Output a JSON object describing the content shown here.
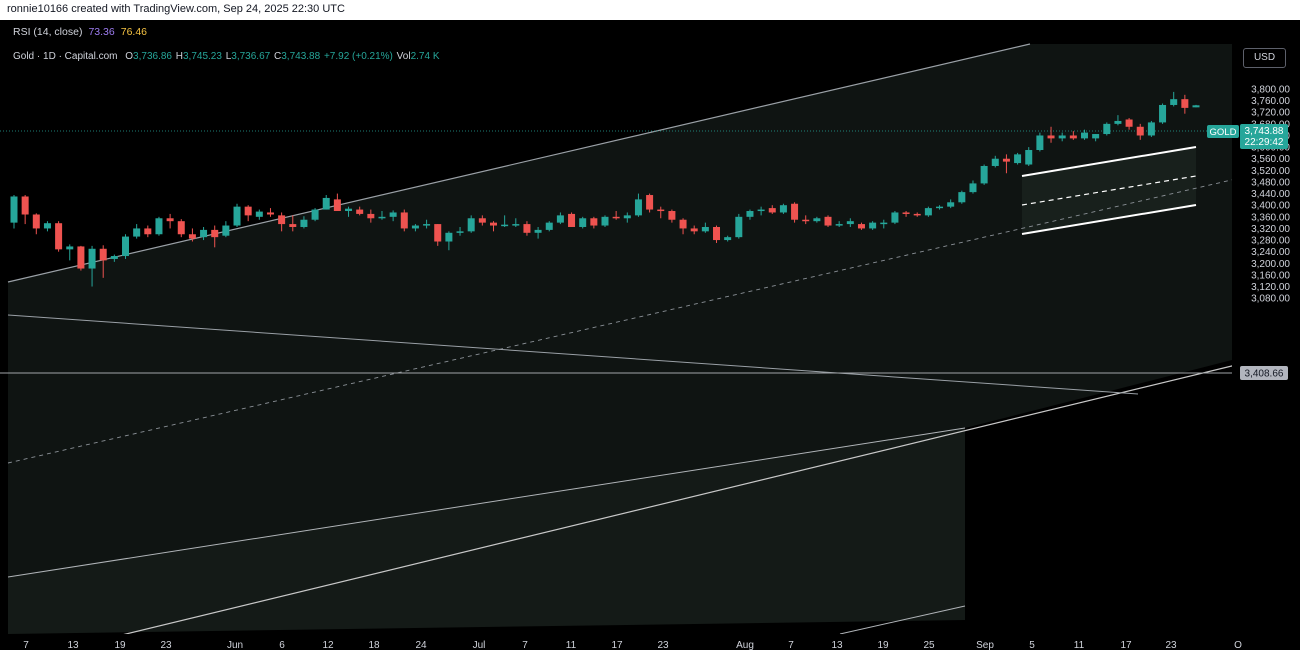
{
  "header": {
    "credit": "ronnie10166 created with TradingView.com, Sep 24, 2025 22:30 UTC"
  },
  "indicator": {
    "label": "RSI (14, close)",
    "value1": "73.36",
    "value2": "76.46"
  },
  "legend": {
    "symbol": "Gold · 1D · Capital.com",
    "o_key": "O",
    "o_val": "3,736.86",
    "h_key": "H",
    "h_val": "3,745.23",
    "l_key": "L",
    "l_val": "3,736.67",
    "c_key": "C",
    "c_val": "3,743.88",
    "change": "+7.92 (+0.21%)",
    "vol_key": "Vol",
    "vol_val": "2.74 K"
  },
  "currency_button": "USD",
  "price_tag": {
    "symbol": "GOLD",
    "price": "3,743.88",
    "countdown": "22:29:42"
  },
  "level_tag": "3,408.66",
  "colors": {
    "up": "#26a69a",
    "down": "#ef5350",
    "background": "#000000",
    "line": "#c8c8c8"
  },
  "chart_data": {
    "type": "candlestick",
    "symbol": "GOLD",
    "interval": "1D",
    "ylim": [
      3045,
      3880
    ],
    "y_ticks": [
      "3,800.00",
      "3,760.00",
      "3,720.00",
      "3,680.00",
      "3,640.00",
      "3,600.00",
      "3,560.00",
      "3,520.00",
      "3,480.00",
      "3,440.00",
      "3,400.00",
      "3,360.00",
      "3,320.00",
      "3,280.00",
      "3,240.00",
      "3,200.00",
      "3,160.00",
      "3,120.00",
      "3,080.00"
    ],
    "y_tick_values": [
      3800,
      3760,
      3720,
      3680,
      3640,
      3600,
      3560,
      3520,
      3480,
      3440,
      3400,
      3360,
      3320,
      3280,
      3240,
      3200,
      3160,
      3120,
      3080
    ],
    "x_ticks": [
      "7",
      "13",
      "19",
      "23",
      "Jun",
      "6",
      "12",
      "18",
      "24",
      "Jul",
      "7",
      "11",
      "17",
      "23",
      "Aug",
      "7",
      "13",
      "19",
      "25",
      "Sep",
      "5",
      "11",
      "17",
      "23",
      "O"
    ],
    "candles": [
      {
        "o": 3340,
        "h": 3435,
        "l": 3320,
        "c": 3430
      },
      {
        "o": 3430,
        "h": 3435,
        "l": 3335,
        "c": 3368
      },
      {
        "o": 3368,
        "h": 3372,
        "l": 3300,
        "c": 3320
      },
      {
        "o": 3320,
        "h": 3345,
        "l": 3310,
        "c": 3338
      },
      {
        "o": 3338,
        "h": 3345,
        "l": 3240,
        "c": 3248
      },
      {
        "o": 3248,
        "h": 3265,
        "l": 3210,
        "c": 3258
      },
      {
        "o": 3258,
        "h": 3260,
        "l": 3175,
        "c": 3182
      },
      {
        "o": 3182,
        "h": 3260,
        "l": 3120,
        "c": 3250
      },
      {
        "o": 3250,
        "h": 3262,
        "l": 3150,
        "c": 3210
      },
      {
        "o": 3215,
        "h": 3230,
        "l": 3205,
        "c": 3225
      },
      {
        "o": 3225,
        "h": 3300,
        "l": 3215,
        "c": 3292
      },
      {
        "o": 3292,
        "h": 3335,
        "l": 3285,
        "c": 3320
      },
      {
        "o": 3320,
        "h": 3330,
        "l": 3290,
        "c": 3300
      },
      {
        "o": 3300,
        "h": 3360,
        "l": 3295,
        "c": 3355
      },
      {
        "o": 3355,
        "h": 3370,
        "l": 3320,
        "c": 3345
      },
      {
        "o": 3345,
        "h": 3352,
        "l": 3290,
        "c": 3300
      },
      {
        "o": 3300,
        "h": 3320,
        "l": 3275,
        "c": 3285
      },
      {
        "o": 3290,
        "h": 3325,
        "l": 3280,
        "c": 3315
      },
      {
        "o": 3315,
        "h": 3330,
        "l": 3255,
        "c": 3290
      },
      {
        "o": 3295,
        "h": 3345,
        "l": 3290,
        "c": 3330
      },
      {
        "o": 3330,
        "h": 3405,
        "l": 3325,
        "c": 3395
      },
      {
        "o": 3395,
        "h": 3400,
        "l": 3345,
        "c": 3365
      },
      {
        "o": 3360,
        "h": 3385,
        "l": 3350,
        "c": 3378
      },
      {
        "o": 3375,
        "h": 3390,
        "l": 3360,
        "c": 3368
      },
      {
        "o": 3365,
        "h": 3375,
        "l": 3310,
        "c": 3335
      },
      {
        "o": 3335,
        "h": 3365,
        "l": 3310,
        "c": 3325
      },
      {
        "o": 3325,
        "h": 3362,
        "l": 3320,
        "c": 3350
      },
      {
        "o": 3350,
        "h": 3390,
        "l": 3345,
        "c": 3385
      },
      {
        "o": 3385,
        "h": 3435,
        "l": 3385,
        "c": 3425
      },
      {
        "o": 3420,
        "h": 3440,
        "l": 3380,
        "c": 3380
      },
      {
        "o": 3380,
        "h": 3395,
        "l": 3360,
        "c": 3388
      },
      {
        "o": 3385,
        "h": 3395,
        "l": 3365,
        "c": 3370
      },
      {
        "o": 3370,
        "h": 3385,
        "l": 3340,
        "c": 3355
      },
      {
        "o": 3355,
        "h": 3380,
        "l": 3350,
        "c": 3360
      },
      {
        "o": 3360,
        "h": 3382,
        "l": 3345,
        "c": 3375
      },
      {
        "o": 3375,
        "h": 3385,
        "l": 3310,
        "c": 3320
      },
      {
        "o": 3320,
        "h": 3335,
        "l": 3310,
        "c": 3330
      },
      {
        "o": 3330,
        "h": 3350,
        "l": 3320,
        "c": 3335
      },
      {
        "o": 3335,
        "h": 3335,
        "l": 3260,
        "c": 3275
      },
      {
        "o": 3275,
        "h": 3310,
        "l": 3245,
        "c": 3305
      },
      {
        "o": 3310,
        "h": 3325,
        "l": 3295,
        "c": 3310
      },
      {
        "o": 3310,
        "h": 3365,
        "l": 3305,
        "c": 3355
      },
      {
        "o": 3355,
        "h": 3365,
        "l": 3330,
        "c": 3340
      },
      {
        "o": 3340,
        "h": 3345,
        "l": 3310,
        "c": 3330
      },
      {
        "o": 3330,
        "h": 3365,
        "l": 3325,
        "c": 3333
      },
      {
        "o": 3333,
        "h": 3355,
        "l": 3325,
        "c": 3335
      },
      {
        "o": 3335,
        "h": 3345,
        "l": 3295,
        "c": 3305
      },
      {
        "o": 3305,
        "h": 3325,
        "l": 3285,
        "c": 3315
      },
      {
        "o": 3315,
        "h": 3345,
        "l": 3310,
        "c": 3340
      },
      {
        "o": 3340,
        "h": 3375,
        "l": 3335,
        "c": 3365
      },
      {
        "o": 3370,
        "h": 3375,
        "l": 3325,
        "c": 3325
      },
      {
        "o": 3325,
        "h": 3360,
        "l": 3320,
        "c": 3355
      },
      {
        "o": 3355,
        "h": 3360,
        "l": 3320,
        "c": 3330
      },
      {
        "o": 3330,
        "h": 3365,
        "l": 3325,
        "c": 3360
      },
      {
        "o": 3360,
        "h": 3380,
        "l": 3350,
        "c": 3355
      },
      {
        "o": 3355,
        "h": 3375,
        "l": 3340,
        "c": 3365
      },
      {
        "o": 3365,
        "h": 3440,
        "l": 3360,
        "c": 3420
      },
      {
        "o": 3435,
        "h": 3440,
        "l": 3375,
        "c": 3385
      },
      {
        "o": 3385,
        "h": 3395,
        "l": 3355,
        "c": 3380
      },
      {
        "o": 3380,
        "h": 3385,
        "l": 3340,
        "c": 3350
      },
      {
        "o": 3350,
        "h": 3355,
        "l": 3300,
        "c": 3320
      },
      {
        "o": 3320,
        "h": 3330,
        "l": 3300,
        "c": 3310
      },
      {
        "o": 3310,
        "h": 3340,
        "l": 3305,
        "c": 3325
      },
      {
        "o": 3325,
        "h": 3330,
        "l": 3270,
        "c": 3280
      },
      {
        "o": 3280,
        "h": 3295,
        "l": 3275,
        "c": 3290
      },
      {
        "o": 3290,
        "h": 3370,
        "l": 3285,
        "c": 3360
      },
      {
        "o": 3360,
        "h": 3385,
        "l": 3350,
        "c": 3380
      },
      {
        "o": 3380,
        "h": 3395,
        "l": 3365,
        "c": 3385
      },
      {
        "o": 3390,
        "h": 3400,
        "l": 3370,
        "c": 3375
      },
      {
        "o": 3375,
        "h": 3405,
        "l": 3370,
        "c": 3400
      },
      {
        "o": 3405,
        "h": 3410,
        "l": 3340,
        "c": 3350
      },
      {
        "o": 3350,
        "h": 3365,
        "l": 3335,
        "c": 3345
      },
      {
        "o": 3345,
        "h": 3360,
        "l": 3340,
        "c": 3355
      },
      {
        "o": 3360,
        "h": 3365,
        "l": 3325,
        "c": 3330
      },
      {
        "o": 3330,
        "h": 3345,
        "l": 3325,
        "c": 3335
      },
      {
        "o": 3335,
        "h": 3355,
        "l": 3325,
        "c": 3345
      },
      {
        "o": 3335,
        "h": 3340,
        "l": 3315,
        "c": 3320
      },
      {
        "o": 3320,
        "h": 3345,
        "l": 3315,
        "c": 3340
      },
      {
        "o": 3340,
        "h": 3350,
        "l": 3320,
        "c": 3340
      },
      {
        "o": 3340,
        "h": 3380,
        "l": 3335,
        "c": 3375
      },
      {
        "o": 3375,
        "h": 3380,
        "l": 3360,
        "c": 3370
      },
      {
        "o": 3370,
        "h": 3375,
        "l": 3360,
        "c": 3365
      },
      {
        "o": 3365,
        "h": 3395,
        "l": 3360,
        "c": 3390
      },
      {
        "o": 3390,
        "h": 3400,
        "l": 3385,
        "c": 3395
      },
      {
        "o": 3395,
        "h": 3420,
        "l": 3390,
        "c": 3410
      },
      {
        "o": 3410,
        "h": 3450,
        "l": 3405,
        "c": 3445
      },
      {
        "o": 3445,
        "h": 3485,
        "l": 3440,
        "c": 3475
      },
      {
        "o": 3475,
        "h": 3540,
        "l": 3470,
        "c": 3535
      },
      {
        "o": 3535,
        "h": 3570,
        "l": 3530,
        "c": 3560
      },
      {
        "o": 3560,
        "h": 3575,
        "l": 3510,
        "c": 3550
      },
      {
        "o": 3545,
        "h": 3580,
        "l": 3540,
        "c": 3575
      },
      {
        "o": 3540,
        "h": 3600,
        "l": 3535,
        "c": 3590
      },
      {
        "o": 3590,
        "h": 3650,
        "l": 3585,
        "c": 3640
      },
      {
        "o": 3640,
        "h": 3670,
        "l": 3615,
        "c": 3630
      },
      {
        "o": 3630,
        "h": 3650,
        "l": 3620,
        "c": 3640
      },
      {
        "o": 3640,
        "h": 3655,
        "l": 3625,
        "c": 3630
      },
      {
        "o": 3630,
        "h": 3660,
        "l": 3625,
        "c": 3650
      },
      {
        "o": 3630,
        "h": 3645,
        "l": 3620,
        "c": 3645
      },
      {
        "o": 3645,
        "h": 3685,
        "l": 3640,
        "c": 3680
      },
      {
        "o": 3680,
        "h": 3710,
        "l": 3675,
        "c": 3690
      },
      {
        "o": 3695,
        "h": 3700,
        "l": 3660,
        "c": 3670
      },
      {
        "o": 3670,
        "h": 3680,
        "l": 3625,
        "c": 3640
      },
      {
        "o": 3640,
        "h": 3690,
        "l": 3635,
        "c": 3685
      },
      {
        "o": 3685,
        "h": 3750,
        "l": 3680,
        "c": 3745
      },
      {
        "o": 3745,
        "h": 3790,
        "l": 3740,
        "c": 3765
      },
      {
        "o": 3765,
        "h": 3780,
        "l": 3715,
        "c": 3735
      },
      {
        "o": 3736.86,
        "h": 3745.23,
        "l": 3736.67,
        "c": 3743.88
      }
    ]
  }
}
